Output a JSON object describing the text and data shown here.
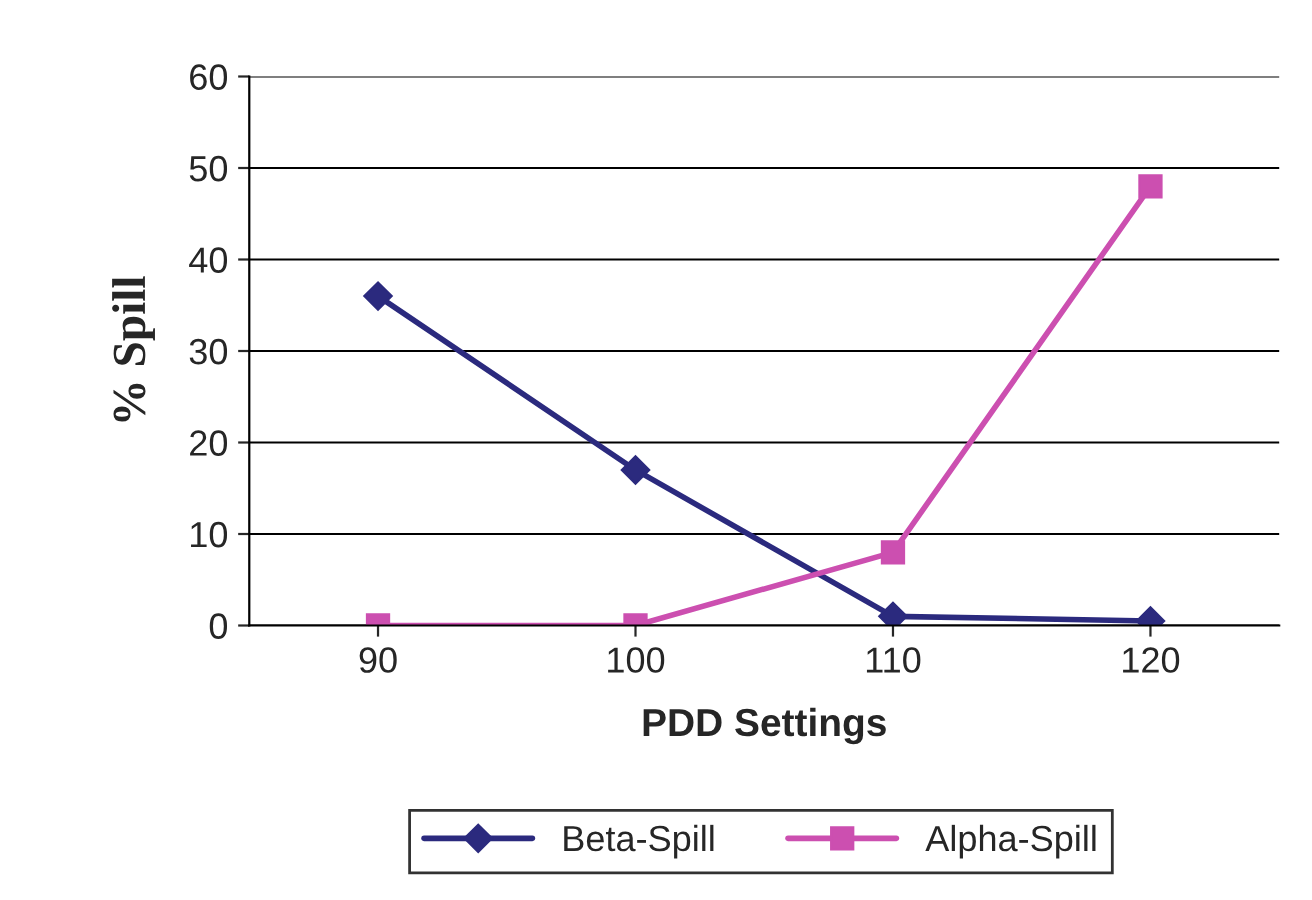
{
  "chart_data": {
    "type": "line",
    "xlabel": "PDD Settings",
    "ylabel": "% Spill",
    "categories": [
      "90",
      "100",
      "110",
      "120"
    ],
    "series": [
      {
        "name": "Beta-Spill",
        "color": "#2b2a7e",
        "values": [
          36,
          17,
          1,
          0.5
        ],
        "marker": "diamond"
      },
      {
        "name": "Alpha-Spill",
        "color": "#cc4fb0",
        "values": [
          0,
          0,
          8,
          48
        ],
        "marker": "square"
      }
    ],
    "ylim": [
      0,
      60
    ],
    "yticks": [
      0,
      10,
      20,
      30,
      40,
      50,
      60
    ],
    "grid": "y",
    "legend": "bottom",
    "line_style": "solid"
  }
}
